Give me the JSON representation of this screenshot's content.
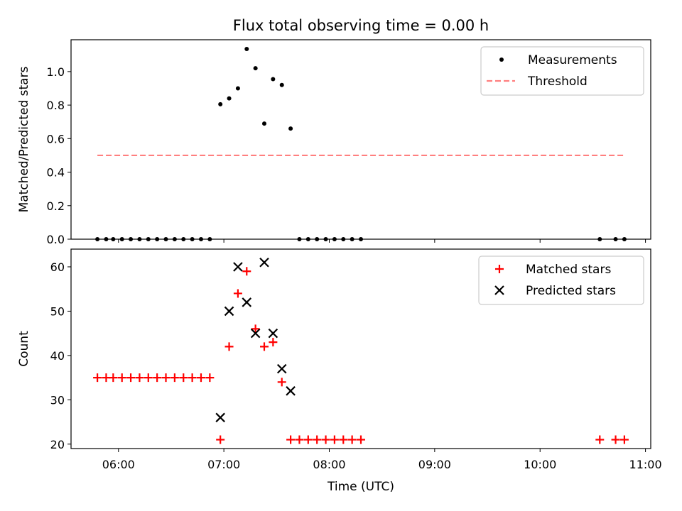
{
  "title": "Flux total observing time = 0.00 h",
  "colors": {
    "measurements": "#000000",
    "threshold": "#ff7f7f",
    "matched": "#ff0000",
    "predicted": "#000000"
  },
  "chart_data": [
    {
      "type": "scatter",
      "title": "Flux total observing time = 0.00 h",
      "xlabel": "",
      "ylabel": "Matched/Predicted stars",
      "xlim": [
        "05:33",
        "11:03"
      ],
      "ylim": [
        0,
        1.19
      ],
      "grid": false,
      "legend": "top-right",
      "x_tick_labels": [
        "06:00",
        "07:00",
        "08:00",
        "09:00",
        "10:00",
        "11:00"
      ],
      "y_ticks": [
        0.0,
        0.2,
        0.4,
        0.6,
        0.8,
        1.0
      ],
      "y_tick_labels": [
        "0.0",
        "0.2",
        "0.4",
        "0.6",
        "0.8",
        "1.0"
      ],
      "series": [
        {
          "name": "Measurements",
          "kind": "points",
          "points": [
            [
              "05:48",
              0
            ],
            [
              "05:53",
              0
            ],
            [
              "05:57",
              0
            ],
            [
              "06:02",
              0
            ],
            [
              "06:07",
              0
            ],
            [
              "06:12",
              0
            ],
            [
              "06:17",
              0
            ],
            [
              "06:22",
              0
            ],
            [
              "06:27",
              0
            ],
            [
              "06:32",
              0
            ],
            [
              "06:37",
              0
            ],
            [
              "06:42",
              0
            ],
            [
              "06:47",
              0
            ],
            [
              "06:52",
              0
            ],
            [
              "06:58",
              0.805
            ],
            [
              "07:03",
              0.84
            ],
            [
              "07:08",
              0.9
            ],
            [
              "07:13",
              1.135
            ],
            [
              "07:18",
              1.02
            ],
            [
              "07:23",
              0.69
            ],
            [
              "07:28",
              0.955
            ],
            [
              "07:33",
              0.92
            ],
            [
              "07:38",
              0.66
            ],
            [
              "07:43",
              0
            ],
            [
              "07:48",
              0
            ],
            [
              "07:53",
              0
            ],
            [
              "07:58",
              0
            ],
            [
              "08:03",
              0
            ],
            [
              "08:08",
              0
            ],
            [
              "08:13",
              0
            ],
            [
              "08:18",
              0
            ],
            [
              "10:34",
              0
            ],
            [
              "10:43",
              0
            ],
            [
              "10:48",
              0
            ]
          ]
        },
        {
          "name": "Threshold",
          "kind": "dashed-line",
          "points": [
            [
              "05:48",
              0.5
            ],
            [
              "10:48",
              0.5
            ]
          ]
        }
      ]
    },
    {
      "type": "scatter",
      "xlabel": "Time (UTC)",
      "ylabel": "Count",
      "xlim": [
        "05:33",
        "11:03"
      ],
      "ylim": [
        19,
        64
      ],
      "grid": false,
      "legend": "top-right",
      "x_tick_labels": [
        "06:00",
        "07:00",
        "08:00",
        "09:00",
        "10:00",
        "11:00"
      ],
      "y_ticks": [
        20,
        30,
        40,
        50,
        60
      ],
      "y_tick_labels": [
        "20",
        "30",
        "40",
        "50",
        "60"
      ],
      "series": [
        {
          "name": "Matched stars",
          "marker": "+",
          "points": [
            [
              "05:48",
              35
            ],
            [
              "05:53",
              35
            ],
            [
              "05:57",
              35
            ],
            [
              "06:02",
              35
            ],
            [
              "06:07",
              35
            ],
            [
              "06:12",
              35
            ],
            [
              "06:17",
              35
            ],
            [
              "06:22",
              35
            ],
            [
              "06:27",
              35
            ],
            [
              "06:32",
              35
            ],
            [
              "06:37",
              35
            ],
            [
              "06:42",
              35
            ],
            [
              "06:47",
              35
            ],
            [
              "06:52",
              35
            ],
            [
              "06:58",
              21
            ],
            [
              "07:03",
              42
            ],
            [
              "07:08",
              54
            ],
            [
              "07:13",
              59
            ],
            [
              "07:18",
              46
            ],
            [
              "07:23",
              42
            ],
            [
              "07:28",
              43
            ],
            [
              "07:33",
              34
            ],
            [
              "07:38",
              21
            ],
            [
              "07:43",
              21
            ],
            [
              "07:48",
              21
            ],
            [
              "07:53",
              21
            ],
            [
              "07:58",
              21
            ],
            [
              "08:03",
              21
            ],
            [
              "08:08",
              21
            ],
            [
              "08:13",
              21
            ],
            [
              "08:18",
              21
            ],
            [
              "10:34",
              21
            ],
            [
              "10:43",
              21
            ],
            [
              "10:48",
              21
            ]
          ]
        },
        {
          "name": "Predicted stars",
          "marker": "x",
          "points": [
            [
              "06:58",
              26
            ],
            [
              "07:03",
              50
            ],
            [
              "07:08",
              60
            ],
            [
              "07:13",
              52
            ],
            [
              "07:18",
              45
            ],
            [
              "07:23",
              61
            ],
            [
              "07:28",
              45
            ],
            [
              "07:33",
              37
            ],
            [
              "07:38",
              32
            ]
          ]
        }
      ]
    }
  ]
}
